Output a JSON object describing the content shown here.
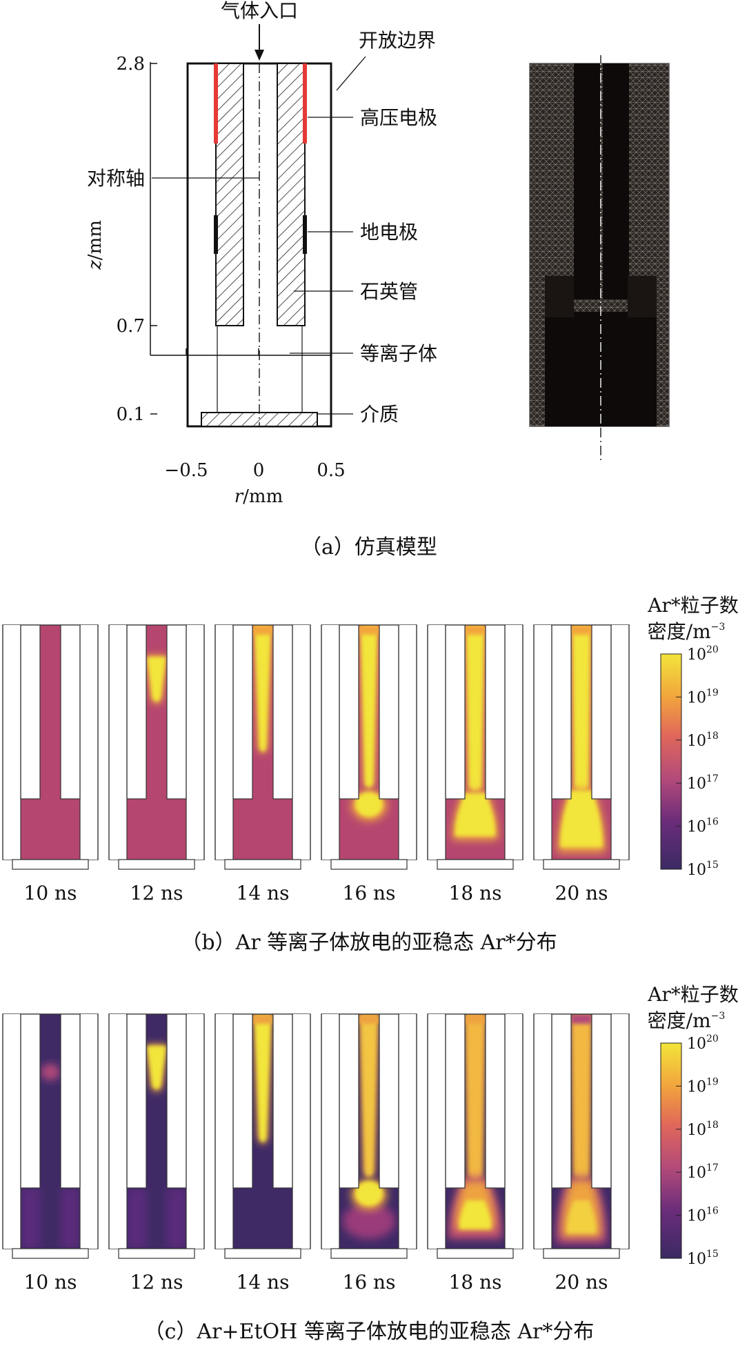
{
  "panel_a": {
    "caption": "（a）仿真模型",
    "annotations": {
      "gas_inlet": "气体入口",
      "open_boundary": "开放边界",
      "hv_electrode": "高压电极",
      "symmetry_axis": "对称轴",
      "ground_electrode": "地电极",
      "quartz_tube": "石英管",
      "plasma": "等离子体",
      "dielectric": "介质"
    },
    "y_axis_label_italic": "z",
    "y_axis_label_unit": "/mm",
    "x_axis_label_italic": "r",
    "x_axis_label_unit": "/mm",
    "y_ticks": [
      "2.8",
      "0.7",
      "0.1"
    ],
    "x_ticks": [
      "−0.5",
      "0",
      "0.5"
    ]
  },
  "panel_b": {
    "caption": "（b）Ar 等离子体放电的亚稳态 Ar*分布",
    "times": [
      "10 ns",
      "12 ns",
      "14 ns",
      "16 ns",
      "18 ns",
      "20 ns"
    ],
    "colorbar_title_1": "Ar*粒子数",
    "colorbar_title_2": "密度/m",
    "colorbar_title_exp": "−3",
    "colorbar_base": "10",
    "colorbar_exps": [
      "20",
      "19",
      "18",
      "17",
      "16",
      "15"
    ]
  },
  "panel_c": {
    "caption": "（c）Ar+EtOH 等离子体放电的亚稳态 Ar*分布",
    "times": [
      "10 ns",
      "12 ns",
      "14 ns",
      "16 ns",
      "18 ns",
      "20 ns"
    ],
    "colorbar_title_1": "Ar*粒子数",
    "colorbar_title_2": "密度/m",
    "colorbar_title_exp": "−3",
    "colorbar_base": "10",
    "colorbar_exps": [
      "20",
      "19",
      "18",
      "17",
      "16",
      "15"
    ]
  },
  "colors": {
    "hv_electrode": "#e53935",
    "cmap_high": "#f2e53a",
    "cmap_mid": "#e8883a",
    "cmap_low": "#b34a7a",
    "cmap_min": "#3b2a63",
    "ar_background": "#b5466f",
    "etoh_background": "#3f2a66"
  }
}
